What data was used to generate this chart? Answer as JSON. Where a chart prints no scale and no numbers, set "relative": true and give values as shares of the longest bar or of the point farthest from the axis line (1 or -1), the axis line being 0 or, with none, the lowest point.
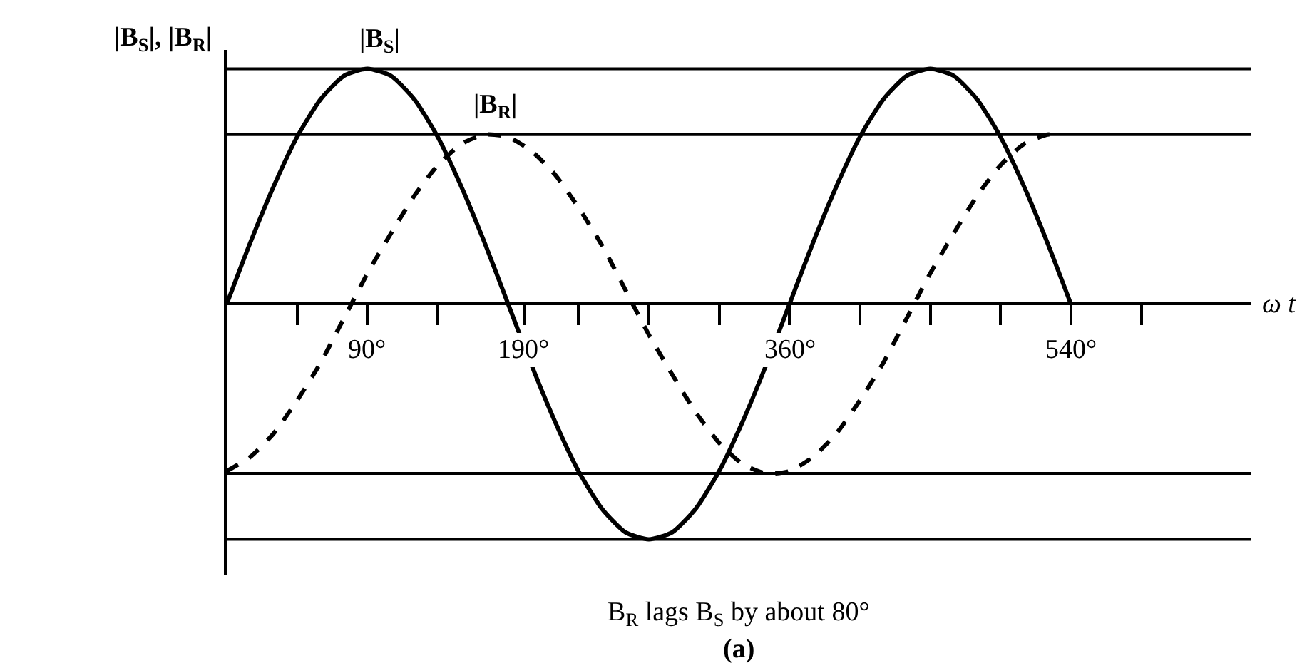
{
  "chart_data": {
    "type": "line",
    "relative": true,
    "ylabel": "|B$_{S}$|, |B$_{R}$|",
    "xlabel": "ω t",
    "xlim": [
      0,
      655
    ],
    "xticks": [
      {
        "value": 45,
        "label": null
      },
      {
        "value": 90,
        "label": "90°"
      },
      {
        "value": 135,
        "label": null
      },
      {
        "value": 190,
        "label": "190°"
      },
      {
        "value": 225,
        "label": null
      },
      {
        "value": 270,
        "label": null
      },
      {
        "value": 315,
        "label": null
      },
      {
        "value": 360,
        "label": "360°"
      },
      {
        "value": 405,
        "label": null
      },
      {
        "value": 450,
        "label": null
      },
      {
        "value": 495,
        "label": null
      },
      {
        "value": 540,
        "label": "540°"
      },
      {
        "value": 585,
        "label": null
      }
    ],
    "legend": false,
    "marker": "none",
    "series": [
      {
        "name": "|B$_{S}$|",
        "color": "#000000",
        "line_style": "solid",
        "x": [
          0,
          15,
          30,
          45,
          60,
          75,
          90,
          105,
          120,
          135,
          150,
          165,
          180,
          195,
          210,
          225,
          240,
          255,
          270,
          285,
          300,
          315,
          330,
          345,
          360,
          375,
          390,
          405,
          420,
          435,
          450,
          465,
          480,
          495,
          510,
          525,
          540
        ],
        "values": [
          0,
          0.26,
          0.5,
          0.71,
          0.87,
          0.97,
          1,
          0.97,
          0.87,
          0.71,
          0.5,
          0.26,
          0,
          -0.26,
          -0.5,
          -0.71,
          -0.87,
          -0.97,
          -1,
          -0.97,
          -0.87,
          -0.71,
          -0.5,
          -0.26,
          0,
          0.26,
          0.5,
          0.71,
          0.87,
          0.97,
          1,
          0.97,
          0.87,
          0.71,
          0.5,
          0.26,
          0
        ]
      },
      {
        "name": "|B$_{R}$|",
        "color": "#000000",
        "line_style": "dashed",
        "x": [
          0,
          15,
          30,
          45,
          60,
          75,
          90,
          105,
          120,
          135,
          150,
          165,
          180,
          195,
          210,
          225,
          240,
          255,
          270,
          285,
          300,
          315,
          330,
          345,
          360,
          375,
          390,
          405,
          420,
          435,
          450,
          465,
          480,
          495,
          510,
          525,
          530
        ],
        "values": [
          -0.71,
          -0.65,
          -0.55,
          -0.41,
          -0.25,
          -0.06,
          0.13,
          0.3,
          0.46,
          0.59,
          0.68,
          0.72,
          0.71,
          0.65,
          0.55,
          0.41,
          0.25,
          0.06,
          -0.13,
          -0.3,
          -0.46,
          -0.59,
          -0.68,
          -0.72,
          -0.71,
          -0.65,
          -0.55,
          -0.41,
          -0.25,
          -0.06,
          0.13,
          0.3,
          0.46,
          0.59,
          0.68,
          0.72,
          0.72
        ]
      }
    ],
    "ref_lines": [
      {
        "axis": "y",
        "value": 1,
        "color": "#000000",
        "line_style": "solid"
      },
      {
        "axis": "y",
        "value": 0.72,
        "color": "#000000",
        "line_style": "solid"
      },
      {
        "axis": "y",
        "value": -0.72,
        "color": "#000000",
        "line_style": "solid"
      },
      {
        "axis": "y",
        "value": -1,
        "color": "#000000",
        "line_style": "solid"
      }
    ],
    "annotations": [
      "B$_{R}$ lags B$_{S}$ by about 80°",
      "(a)"
    ]
  }
}
